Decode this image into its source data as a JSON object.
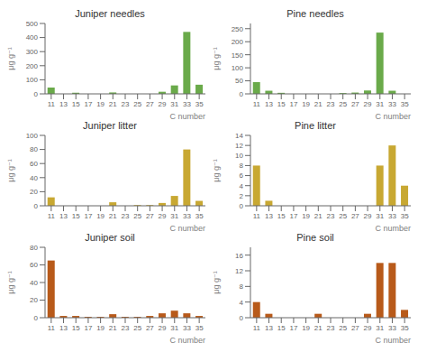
{
  "chart_data": [
    {
      "type": "bar",
      "title": "Juniper needles",
      "xlabel": "C  number",
      "ylabel": "μg g⁻¹",
      "categories": [
        11,
        13,
        15,
        17,
        19,
        21,
        23,
        25,
        27,
        29,
        31,
        33,
        35
      ],
      "values": [
        45,
        0,
        8,
        0,
        0,
        10,
        0,
        0,
        0,
        15,
        60,
        440,
        65
      ],
      "color": "#6aaa4a",
      "ylim": [
        0,
        500
      ],
      "yticks": [
        0,
        100,
        200,
        300,
        400,
        500
      ],
      "grid": false
    },
    {
      "type": "bar",
      "title": "Pine needles",
      "xlabel": "C  number",
      "ylabel": "μg g⁻¹",
      "categories": [
        11,
        13,
        15,
        17,
        19,
        21,
        23,
        25,
        27,
        29,
        31,
        33,
        35
      ],
      "values": [
        45,
        12,
        4,
        0,
        0,
        0,
        0,
        3,
        5,
        13,
        235,
        12,
        0
      ],
      "color": "#6aaa4a",
      "ylim": [
        0,
        270
      ],
      "yticks": [
        0,
        50,
        100,
        150,
        200,
        250
      ],
      "grid": false
    },
    {
      "type": "bar",
      "title": "Juniper litter",
      "xlabel": "C  number",
      "ylabel": "μg g⁻¹",
      "categories": [
        11,
        13,
        15,
        17,
        19,
        21,
        23,
        25,
        27,
        29,
        31,
        33,
        35
      ],
      "values": [
        12,
        0,
        0,
        0,
        0,
        5,
        0,
        1,
        1,
        4,
        14,
        80,
        7
      ],
      "color": "#c8a832",
      "ylim": [
        0,
        100
      ],
      "yticks": [
        0,
        20,
        40,
        60,
        80,
        100
      ],
      "grid": false
    },
    {
      "type": "bar",
      "title": "Pine litter",
      "xlabel": "C  number",
      "ylabel": "μg g⁻¹",
      "categories": [
        11,
        13,
        15,
        17,
        19,
        21,
        23,
        25,
        27,
        29,
        31,
        33,
        35
      ],
      "values": [
        8,
        1,
        0,
        0,
        0,
        0,
        0,
        0,
        0,
        0,
        8,
        12,
        4
      ],
      "color": "#c8a832",
      "ylim": [
        0,
        14
      ],
      "yticks": [
        0,
        2,
        4,
        6,
        8,
        10,
        12,
        14
      ],
      "grid": false
    },
    {
      "type": "bar",
      "title": "Juniper soil",
      "xlabel": "C  number",
      "ylabel": "μg g⁻¹",
      "categories": [
        11,
        13,
        15,
        17,
        19,
        21,
        23,
        25,
        27,
        29,
        31,
        33,
        35
      ],
      "values": [
        65,
        2,
        2,
        1,
        1,
        4,
        1,
        1,
        2,
        5,
        8,
        5,
        2
      ],
      "color": "#b85a1a",
      "ylim": [
        0,
        80
      ],
      "yticks": [
        0,
        20,
        40,
        60,
        80
      ],
      "grid": false
    },
    {
      "type": "bar",
      "title": "Pine soil",
      "xlabel": "C  number",
      "ylabel": "μg g⁻¹",
      "categories": [
        11,
        13,
        15,
        17,
        19,
        21,
        23,
        25,
        27,
        29,
        31,
        33,
        35
      ],
      "values": [
        4,
        1,
        0,
        0,
        0,
        1,
        0,
        0,
        0,
        1,
        14,
        14,
        2
      ],
      "color": "#b85a1a",
      "ylim": [
        0,
        18
      ],
      "yticks": [
        0,
        4,
        8,
        12,
        16
      ],
      "grid": false
    }
  ]
}
